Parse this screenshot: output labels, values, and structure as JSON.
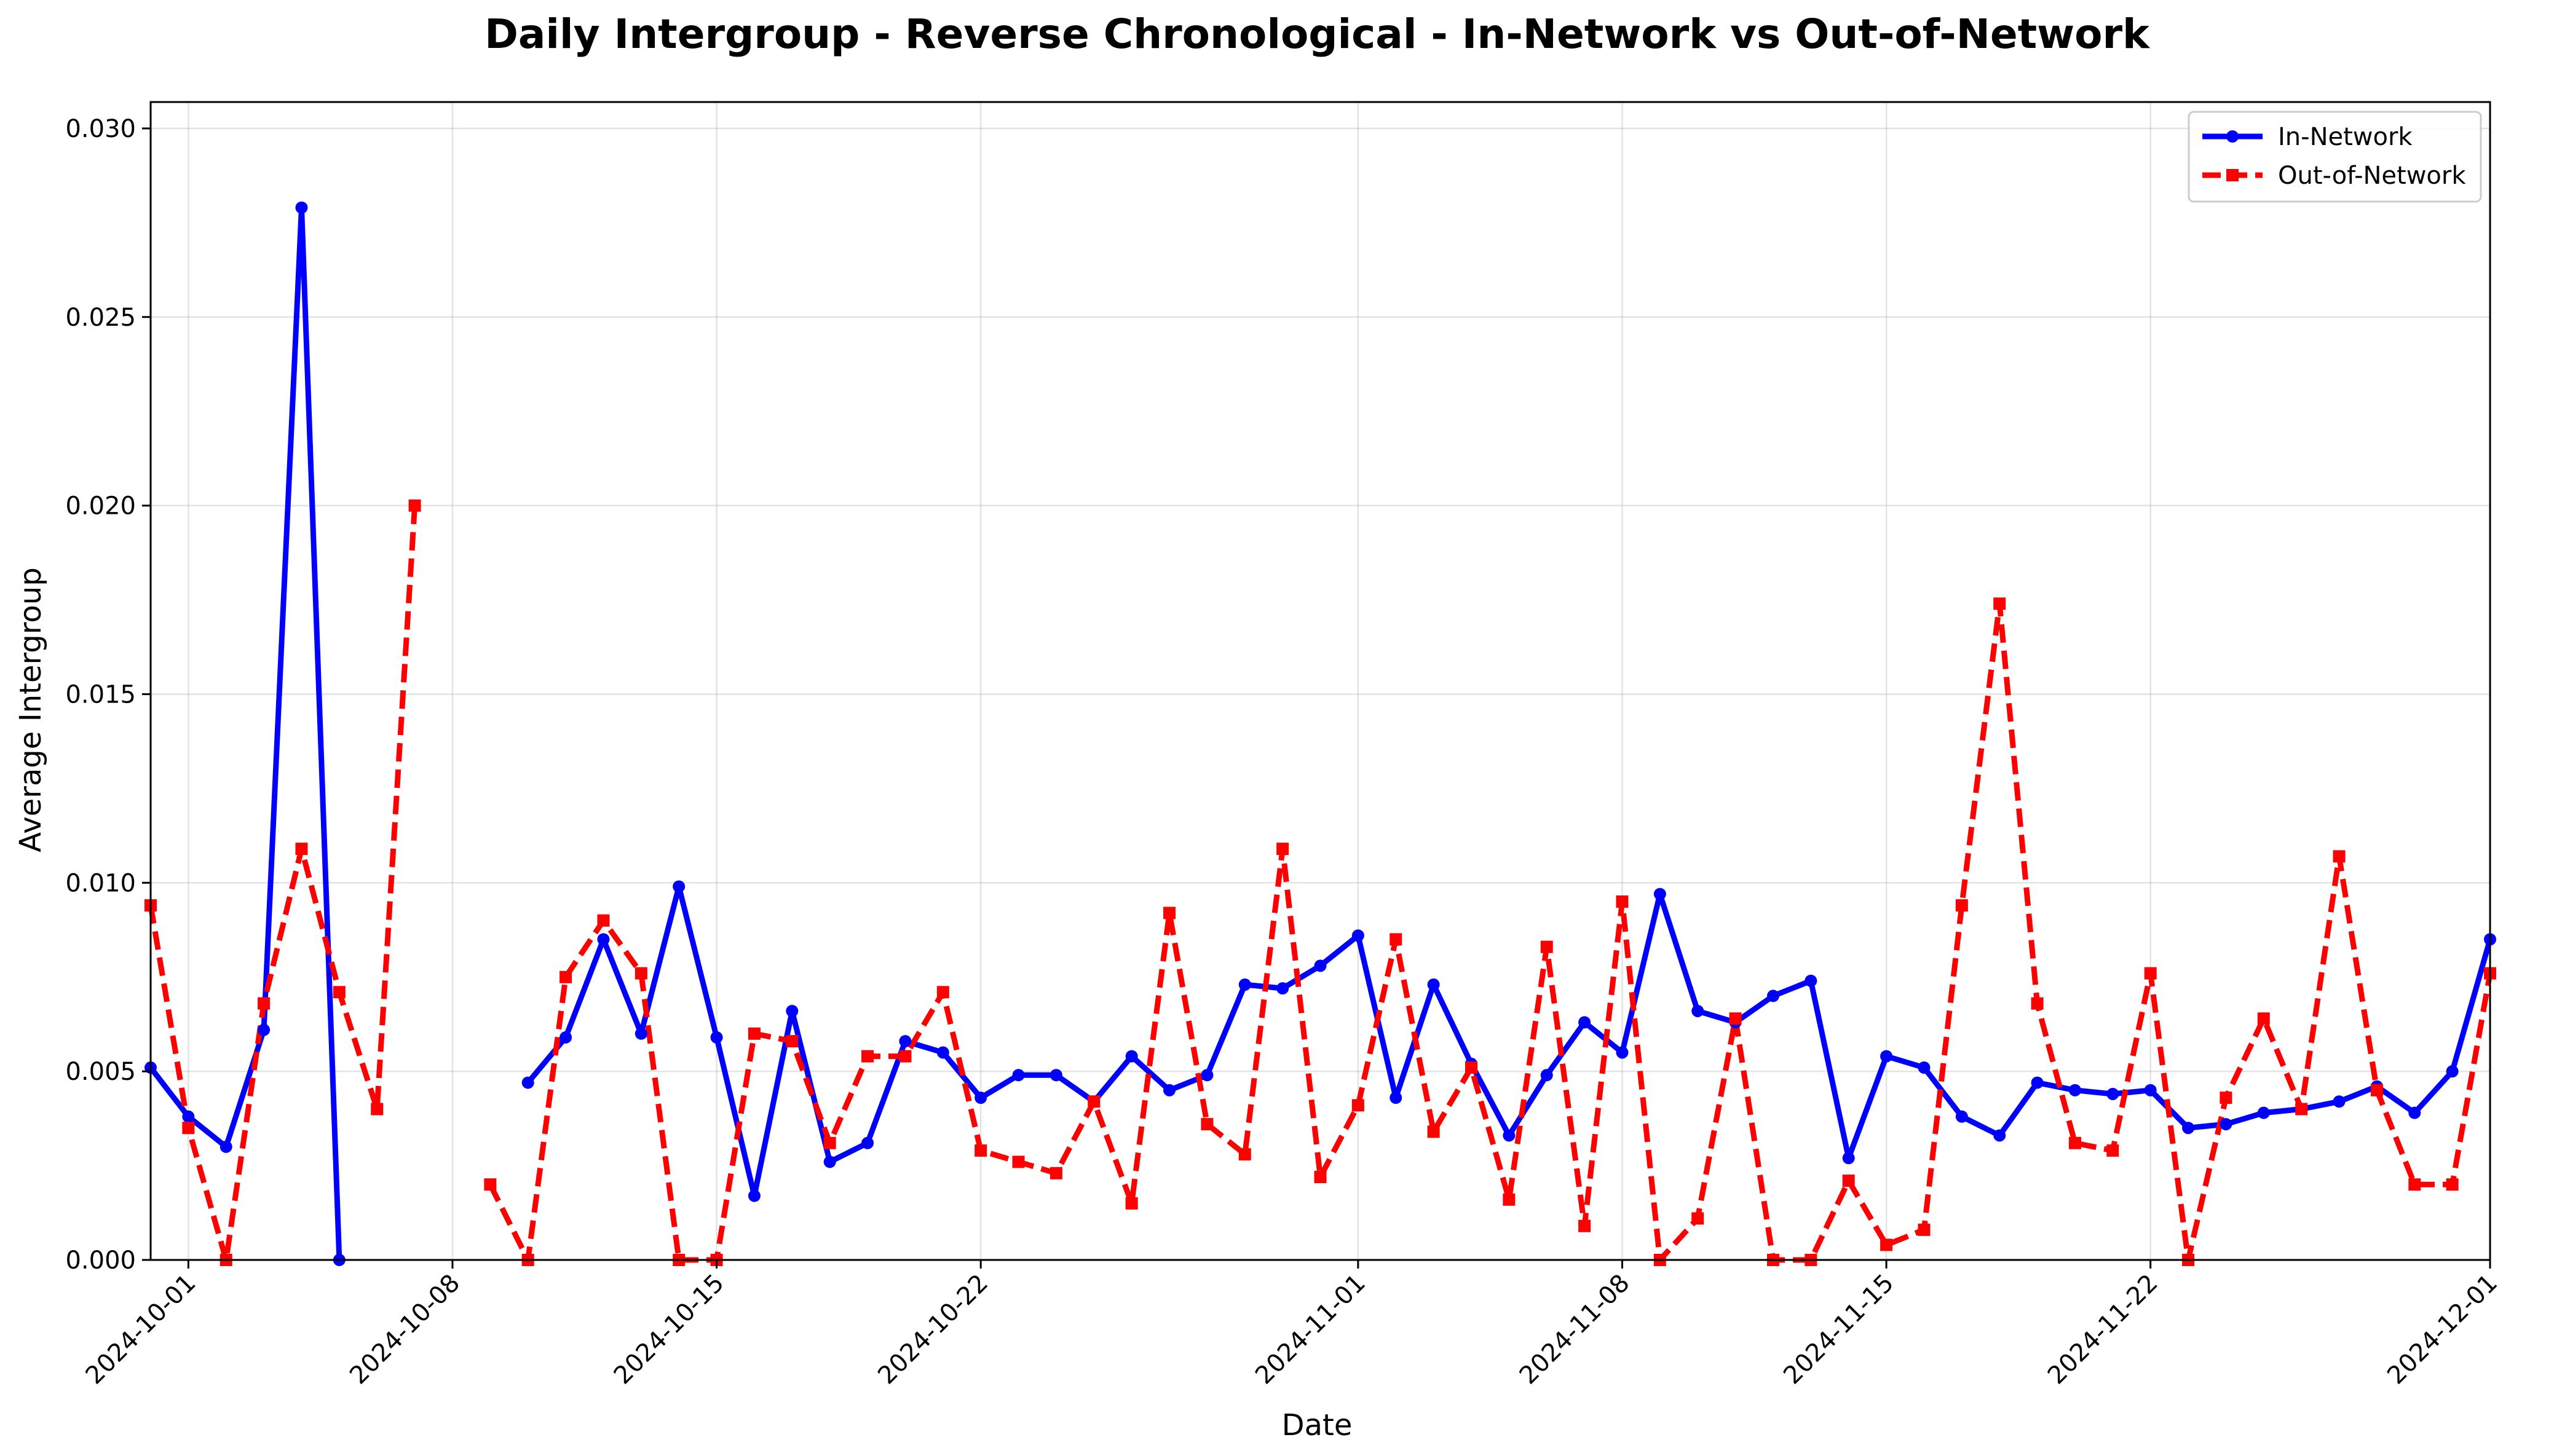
{
  "chart_data": {
    "type": "line",
    "title": "Daily Intergroup - Reverse Chronological - In-Network vs Out-of-Network",
    "xlabel": "Date",
    "ylabel": "Average Intergroup",
    "xlim": [
      "2024-09-30",
      "2024-12-01"
    ],
    "ylim": [
      0,
      0.0307
    ],
    "x_ticks": [
      "2024-10-01",
      "2024-10-08",
      "2024-10-15",
      "2024-10-22",
      "2024-11-01",
      "2024-11-08",
      "2024-11-15",
      "2024-11-22",
      "2024-12-01"
    ],
    "y_ticks": [
      "0.000",
      "0.005",
      "0.010",
      "0.015",
      "0.020",
      "0.025",
      "0.030"
    ],
    "grid": true,
    "legend_position": "top-right",
    "series": [
      {
        "name": "In-Network",
        "color": "#0000ff",
        "style": "solid",
        "marker": "circle",
        "points": [
          [
            "2024-09-30",
            0.0051
          ],
          [
            "2024-10-01",
            0.0038
          ],
          [
            "2024-10-02",
            0.003
          ],
          [
            "2024-10-03",
            0.0061
          ],
          [
            "2024-10-04",
            0.0279
          ],
          [
            "2024-10-05",
            0.0
          ],
          [
            "2024-10-10",
            0.0047
          ],
          [
            "2024-10-11",
            0.0059
          ],
          [
            "2024-10-12",
            0.0085
          ],
          [
            "2024-10-13",
            0.006
          ],
          [
            "2024-10-14",
            0.0099
          ],
          [
            "2024-10-15",
            0.0059
          ],
          [
            "2024-10-16",
            0.0017
          ],
          [
            "2024-10-17",
            0.0066
          ],
          [
            "2024-10-18",
            0.0026
          ],
          [
            "2024-10-19",
            0.0031
          ],
          [
            "2024-10-20",
            0.0058
          ],
          [
            "2024-10-21",
            0.0055
          ],
          [
            "2024-10-22",
            0.0043
          ],
          [
            "2024-10-23",
            0.0049
          ],
          [
            "2024-10-24",
            0.0049
          ],
          [
            "2024-10-25",
            0.0042
          ],
          [
            "2024-10-26",
            0.0054
          ],
          [
            "2024-10-27",
            0.0045
          ],
          [
            "2024-10-28",
            0.0049
          ],
          [
            "2024-10-29",
            0.0073
          ],
          [
            "2024-10-30",
            0.0072
          ],
          [
            "2024-10-31",
            0.0078
          ],
          [
            "2024-11-01",
            0.0086
          ],
          [
            "2024-11-02",
            0.0043
          ],
          [
            "2024-11-03",
            0.0073
          ],
          [
            "2024-11-04",
            0.0052
          ],
          [
            "2024-11-05",
            0.0033
          ],
          [
            "2024-11-06",
            0.0049
          ],
          [
            "2024-11-07",
            0.0063
          ],
          [
            "2024-11-08",
            0.0055
          ],
          [
            "2024-11-09",
            0.0097
          ],
          [
            "2024-11-10",
            0.0066
          ],
          [
            "2024-11-11",
            0.0063
          ],
          [
            "2024-11-12",
            0.007
          ],
          [
            "2024-11-13",
            0.0074
          ],
          [
            "2024-11-14",
            0.0027
          ],
          [
            "2024-11-15",
            0.0054
          ],
          [
            "2024-11-16",
            0.0051
          ],
          [
            "2024-11-17",
            0.0038
          ],
          [
            "2024-11-18",
            0.0033
          ],
          [
            "2024-11-19",
            0.0047
          ],
          [
            "2024-11-20",
            0.0045
          ],
          [
            "2024-11-21",
            0.0044
          ],
          [
            "2024-11-22",
            0.0045
          ],
          [
            "2024-11-23",
            0.0035
          ],
          [
            "2024-11-24",
            0.0036
          ],
          [
            "2024-11-25",
            0.0039
          ],
          [
            "2024-11-26",
            0.004
          ],
          [
            "2024-11-27",
            0.0042
          ],
          [
            "2024-11-28",
            0.0046
          ],
          [
            "2024-11-29",
            0.0039
          ],
          [
            "2024-11-30",
            0.005
          ],
          [
            "2024-12-01",
            0.0085
          ]
        ]
      },
      {
        "name": "Out-of-Network",
        "color": "#ff0000",
        "style": "dashed",
        "marker": "square",
        "points": [
          [
            "2024-09-30",
            0.0094
          ],
          [
            "2024-10-01",
            0.0035
          ],
          [
            "2024-10-02",
            0.0
          ],
          [
            "2024-10-03",
            0.0068
          ],
          [
            "2024-10-04",
            0.0109
          ],
          [
            "2024-10-05",
            0.0071
          ],
          [
            "2024-10-06",
            0.004
          ],
          [
            "2024-10-07",
            0.02
          ],
          [
            "2024-10-09",
            0.002
          ],
          [
            "2024-10-10",
            0.0
          ],
          [
            "2024-10-11",
            0.0075
          ],
          [
            "2024-10-12",
            0.009
          ],
          [
            "2024-10-13",
            0.0076
          ],
          [
            "2024-10-14",
            0.0
          ],
          [
            "2024-10-15",
            0.0
          ],
          [
            "2024-10-16",
            0.006
          ],
          [
            "2024-10-17",
            0.0058
          ],
          [
            "2024-10-18",
            0.0031
          ],
          [
            "2024-10-19",
            0.0054
          ],
          [
            "2024-10-20",
            0.0054
          ],
          [
            "2024-10-21",
            0.0071
          ],
          [
            "2024-10-22",
            0.0029
          ],
          [
            "2024-10-23",
            0.0026
          ],
          [
            "2024-10-24",
            0.0023
          ],
          [
            "2024-10-25",
            0.0042
          ],
          [
            "2024-10-26",
            0.0015
          ],
          [
            "2024-10-27",
            0.0092
          ],
          [
            "2024-10-28",
            0.0036
          ],
          [
            "2024-10-29",
            0.0028
          ],
          [
            "2024-10-30",
            0.0109
          ],
          [
            "2024-10-31",
            0.0022
          ],
          [
            "2024-11-01",
            0.0041
          ],
          [
            "2024-11-02",
            0.0085
          ],
          [
            "2024-11-03",
            0.0034
          ],
          [
            "2024-11-04",
            0.0051
          ],
          [
            "2024-11-05",
            0.0016
          ],
          [
            "2024-11-06",
            0.0083
          ],
          [
            "2024-11-07",
            0.0009
          ],
          [
            "2024-11-08",
            0.0095
          ],
          [
            "2024-11-09",
            0.0
          ],
          [
            "2024-11-10",
            0.0011
          ],
          [
            "2024-11-11",
            0.0064
          ],
          [
            "2024-11-12",
            0.0
          ],
          [
            "2024-11-13",
            0.0
          ],
          [
            "2024-11-14",
            0.0021
          ],
          [
            "2024-11-15",
            0.0004
          ],
          [
            "2024-11-16",
            0.0008
          ],
          [
            "2024-11-17",
            0.0094
          ],
          [
            "2024-11-18",
            0.0174
          ],
          [
            "2024-11-19",
            0.0068
          ],
          [
            "2024-11-20",
            0.0031
          ],
          [
            "2024-11-21",
            0.0029
          ],
          [
            "2024-11-22",
            0.0076
          ],
          [
            "2024-11-23",
            0.0
          ],
          [
            "2024-11-24",
            0.0043
          ],
          [
            "2024-11-25",
            0.0064
          ],
          [
            "2024-11-26",
            0.004
          ],
          [
            "2024-11-27",
            0.0107
          ],
          [
            "2024-11-28",
            0.0045
          ],
          [
            "2024-11-29",
            0.002
          ],
          [
            "2024-11-30",
            0.002
          ],
          [
            "2024-12-01",
            0.0076
          ]
        ]
      }
    ]
  }
}
